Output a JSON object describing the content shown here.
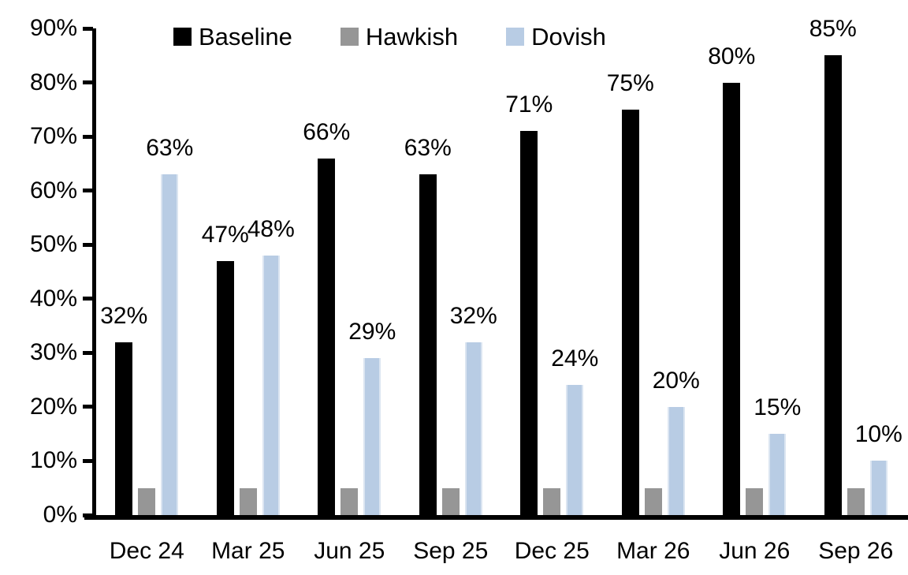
{
  "chart_data": {
    "type": "bar",
    "title": "",
    "xlabel": "",
    "ylabel": "",
    "ylim": [
      0,
      90
    ],
    "ytick_step": 10,
    "yticks": [
      "0%",
      "10%",
      "20%",
      "30%",
      "40%",
      "50%",
      "60%",
      "70%",
      "80%",
      "90%"
    ],
    "grid": "off",
    "legend_position": "top",
    "categories": [
      "Dec 24",
      "Mar 25",
      "Jun 25",
      "Sep 25",
      "Dec 25",
      "Mar 26",
      "Jun 26",
      "Sep 26"
    ],
    "series": [
      {
        "name": "Baseline",
        "color": "#000000",
        "values": [
          32,
          47,
          66,
          63,
          71,
          75,
          80,
          85
        ],
        "labels": [
          "32%",
          "47%",
          "66%",
          "63%",
          "71%",
          "75%",
          "80%",
          "85%"
        ],
        "show_labels": true
      },
      {
        "name": "Hawkish",
        "color": "#969696",
        "values": [
          5,
          5,
          5,
          5,
          5,
          5,
          5,
          5
        ],
        "labels": [],
        "show_labels": false
      },
      {
        "name": "Dovish",
        "color": "#b8cce4",
        "edge_color": "#dbe5f1",
        "values": [
          63,
          48,
          29,
          32,
          24,
          20,
          15,
          10
        ],
        "labels": [
          "63%",
          "48%",
          "29%",
          "32%",
          "24%",
          "20%",
          "15%",
          "10%"
        ],
        "show_labels": true
      }
    ],
    "axis_color": "#000000",
    "label_color": "#000000"
  }
}
